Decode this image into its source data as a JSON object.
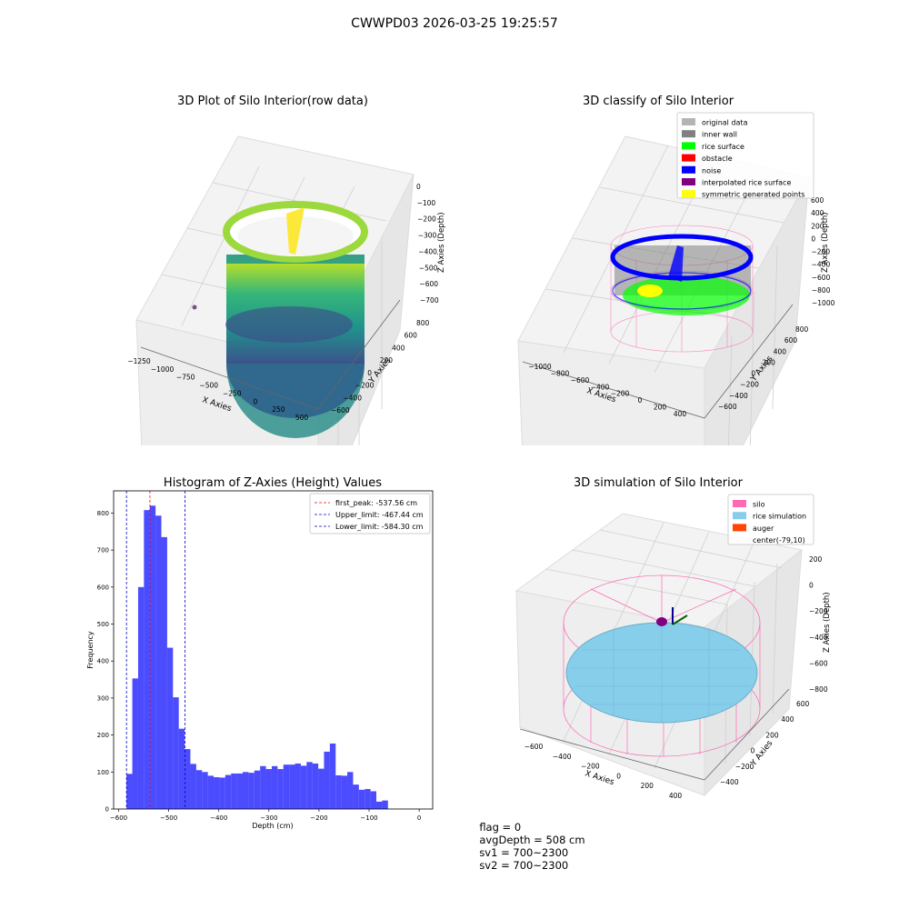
{
  "suptitle": "CWWPD03 2026-03-25 19:25:57",
  "panels": {
    "raw": {
      "title": "3D Plot of Silo Interior(row data)",
      "xlabel": "X Axies",
      "ylabel": "Y Axies",
      "zlabel": "Z Axies (Depth)",
      "xticks": [
        "−1250",
        "−1000",
        "−750",
        "−500",
        "−250",
        "0",
        "250",
        "500"
      ],
      "yticks": [
        "−600",
        "−400",
        "−200",
        "0",
        "200",
        "400",
        "600",
        "800"
      ],
      "zticks": [
        "0",
        "−100",
        "−200",
        "−300",
        "−400",
        "−500",
        "−600",
        "−700"
      ],
      "colormap": "viridis"
    },
    "classify": {
      "title": "3D classify of Silo Interior",
      "xlabel": "X Axies",
      "ylabel": "Y Axies",
      "zlabel": "Z Axies (Depth)",
      "xticks": [
        "−1000",
        "−800",
        "−600",
        "−400",
        "−200",
        "0",
        "200",
        "400"
      ],
      "yticks": [
        "−600",
        "−400",
        "−200",
        "0",
        "200",
        "400",
        "600",
        "800"
      ],
      "zticks": [
        "600",
        "400",
        "200",
        "0",
        "−200",
        "−400",
        "−600",
        "−800",
        "−1000"
      ],
      "legend": [
        {
          "label": "original data",
          "color": "#b4b4b4"
        },
        {
          "label": "inner wall",
          "color": "#808080"
        },
        {
          "label": "rice surface",
          "color": "#00ff00"
        },
        {
          "label": "obstacle",
          "color": "#ff0000"
        },
        {
          "label": "noise",
          "color": "#0000ff"
        },
        {
          "label": "interpolated rice surface",
          "color": "#800080"
        },
        {
          "label": "symmetric generated points",
          "color": "#ffff00"
        }
      ]
    },
    "simulation": {
      "title": "3D simulation of Silo Interior",
      "xlabel": "X Axies",
      "ylabel": "Y Axies",
      "zlabel": "Z Axies (Depth)",
      "xticks": [
        "−600",
        "−400",
        "−200",
        "0",
        "200",
        "400"
      ],
      "yticks": [
        "−400",
        "−200",
        "0",
        "200",
        "400",
        "600"
      ],
      "zticks": [
        "200",
        "0",
        "−200",
        "−400",
        "−600",
        "−800"
      ],
      "legend": [
        {
          "label": "silo",
          "color": "#ff69b4"
        },
        {
          "label": "rice simulation",
          "color": "#87ceeb"
        },
        {
          "label": "auger",
          "color": "#ff4500"
        },
        {
          "label": "center(-79,10)",
          "color": ""
        }
      ]
    }
  },
  "chart_data": {
    "type": "bar",
    "title": "Histogram of Z-Axies (Height) Values",
    "xlabel": "Depth (cm)",
    "ylabel": "Frequency",
    "bar_color": "#0000ff",
    "xlim": [
      -610,
      27
    ],
    "ylim": [
      0,
      860
    ],
    "xticks": [
      -600,
      -500,
      -400,
      -300,
      -200,
      -100,
      0
    ],
    "xtick_labels": [
      "−600",
      "−500",
      "−400",
      "−300",
      "−200",
      "−100",
      "0"
    ],
    "yticks": [
      0,
      100,
      200,
      300,
      400,
      500,
      600,
      700,
      800
    ],
    "bins": {
      "start": -584.3,
      "width": 11.6,
      "values": [
        95,
        353,
        600,
        808,
        820,
        793,
        735,
        436,
        302,
        217,
        162,
        122,
        105,
        100,
        90,
        86,
        85,
        92,
        96,
        96,
        100,
        98,
        104,
        116,
        108,
        116,
        108,
        120,
        120,
        123,
        117,
        127,
        123,
        109,
        155,
        177,
        91,
        90,
        100,
        66,
        52,
        54,
        48,
        20,
        23
      ]
    },
    "lines": [
      {
        "name": "first_peak: -537.56 cm",
        "x": -537.56,
        "color": "#ff0000"
      },
      {
        "name": "Upper_limit: -467.44 cm",
        "x": -467.44,
        "color": "#0000cd"
      },
      {
        "name": "Lower_limit: -584.30 cm",
        "x": -584.3,
        "color": "#0000cd"
      }
    ]
  },
  "footer": {
    "flag": "flag = 0",
    "avg": "avgDepth = 508 cm",
    "sv1": "sv1 = 700~2300",
    "sv2": "sv2 = 700~2300"
  }
}
